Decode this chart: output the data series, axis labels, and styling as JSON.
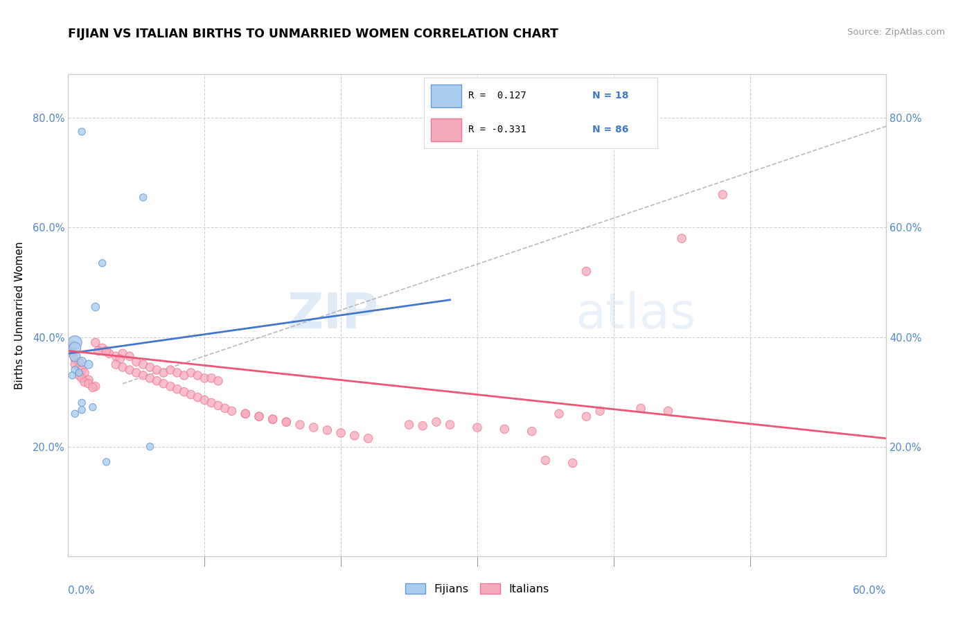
{
  "title": "FIJIAN VS ITALIAN BIRTHS TO UNMARRIED WOMEN CORRELATION CHART",
  "source": "Source: ZipAtlas.com",
  "ylabel": "Births to Unmarried Women",
  "xlim": [
    0.0,
    0.6
  ],
  "ylim": [
    0.0,
    0.88
  ],
  "yticks": [
    0.2,
    0.4,
    0.6,
    0.8
  ],
  "ytick_labels": [
    "20.0%",
    "40.0%",
    "60.0%",
    "80.0%"
  ],
  "fijian_color": "#aaccee",
  "italian_color": "#f5aabb",
  "fijian_edge_color": "#6699cc",
  "italian_edge_color": "#ee7799",
  "fijian_line_color": "#4477cc",
  "italian_line_color": "#ee5577",
  "gray_dash_color": "#aaaaaa",
  "watermark_color": "#ddeeff",
  "fijian_points": [
    [
      0.01,
      0.775
    ],
    [
      0.055,
      0.655
    ],
    [
      0.025,
      0.535
    ],
    [
      0.02,
      0.455
    ],
    [
      0.005,
      0.39
    ],
    [
      0.005,
      0.38
    ],
    [
      0.005,
      0.365
    ],
    [
      0.01,
      0.355
    ],
    [
      0.015,
      0.35
    ],
    [
      0.005,
      0.34
    ],
    [
      0.008,
      0.335
    ],
    [
      0.003,
      0.33
    ],
    [
      0.01,
      0.28
    ],
    [
      0.018,
      0.272
    ],
    [
      0.01,
      0.267
    ],
    [
      0.005,
      0.26
    ],
    [
      0.06,
      0.2
    ],
    [
      0.028,
      0.172
    ]
  ],
  "fijian_sizes": [
    55,
    55,
    55,
    70,
    200,
    150,
    120,
    90,
    75,
    60,
    55,
    55,
    55,
    55,
    55,
    55,
    55,
    55
  ],
  "italian_points": [
    [
      0.003,
      0.385
    ],
    [
      0.003,
      0.37
    ],
    [
      0.005,
      0.36
    ],
    [
      0.008,
      0.355
    ],
    [
      0.005,
      0.35
    ],
    [
      0.008,
      0.345
    ],
    [
      0.01,
      0.34
    ],
    [
      0.012,
      0.335
    ],
    [
      0.008,
      0.33
    ],
    [
      0.01,
      0.325
    ],
    [
      0.015,
      0.322
    ],
    [
      0.012,
      0.318
    ],
    [
      0.015,
      0.315
    ],
    [
      0.02,
      0.31
    ],
    [
      0.018,
      0.308
    ],
    [
      0.02,
      0.39
    ],
    [
      0.025,
      0.38
    ],
    [
      0.022,
      0.375
    ],
    [
      0.03,
      0.37
    ],
    [
      0.035,
      0.365
    ],
    [
      0.028,
      0.375
    ],
    [
      0.04,
      0.37
    ],
    [
      0.045,
      0.365
    ],
    [
      0.038,
      0.36
    ],
    [
      0.05,
      0.355
    ],
    [
      0.055,
      0.35
    ],
    [
      0.06,
      0.345
    ],
    [
      0.065,
      0.34
    ],
    [
      0.07,
      0.335
    ],
    [
      0.075,
      0.34
    ],
    [
      0.08,
      0.335
    ],
    [
      0.085,
      0.33
    ],
    [
      0.09,
      0.335
    ],
    [
      0.095,
      0.33
    ],
    [
      0.1,
      0.325
    ],
    [
      0.105,
      0.325
    ],
    [
      0.11,
      0.32
    ],
    [
      0.035,
      0.35
    ],
    [
      0.04,
      0.345
    ],
    [
      0.045,
      0.34
    ],
    [
      0.05,
      0.335
    ],
    [
      0.055,
      0.33
    ],
    [
      0.06,
      0.325
    ],
    [
      0.065,
      0.32
    ],
    [
      0.07,
      0.315
    ],
    [
      0.075,
      0.31
    ],
    [
      0.08,
      0.305
    ],
    [
      0.085,
      0.3
    ],
    [
      0.09,
      0.295
    ],
    [
      0.095,
      0.29
    ],
    [
      0.1,
      0.285
    ],
    [
      0.105,
      0.28
    ],
    [
      0.11,
      0.275
    ],
    [
      0.115,
      0.27
    ],
    [
      0.12,
      0.265
    ],
    [
      0.13,
      0.26
    ],
    [
      0.14,
      0.255
    ],
    [
      0.15,
      0.25
    ],
    [
      0.16,
      0.245
    ],
    [
      0.17,
      0.24
    ],
    [
      0.18,
      0.235
    ],
    [
      0.19,
      0.23
    ],
    [
      0.2,
      0.225
    ],
    [
      0.21,
      0.22
    ],
    [
      0.22,
      0.215
    ],
    [
      0.13,
      0.26
    ],
    [
      0.14,
      0.255
    ],
    [
      0.15,
      0.25
    ],
    [
      0.16,
      0.245
    ],
    [
      0.25,
      0.24
    ],
    [
      0.26,
      0.238
    ],
    [
      0.27,
      0.245
    ],
    [
      0.28,
      0.24
    ],
    [
      0.3,
      0.235
    ],
    [
      0.32,
      0.232
    ],
    [
      0.34,
      0.228
    ],
    [
      0.36,
      0.26
    ],
    [
      0.38,
      0.255
    ],
    [
      0.39,
      0.265
    ],
    [
      0.42,
      0.27
    ],
    [
      0.44,
      0.265
    ],
    [
      0.38,
      0.52
    ],
    [
      0.45,
      0.58
    ],
    [
      0.48,
      0.66
    ],
    [
      0.35,
      0.175
    ],
    [
      0.37,
      0.17
    ]
  ],
  "italian_sizes": [
    80,
    80,
    80,
    80,
    80,
    80,
    80,
    80,
    80,
    80,
    80,
    80,
    80,
    80,
    80,
    80,
    80,
    80,
    80,
    80,
    80,
    80,
    80,
    80,
    80,
    80,
    80,
    80,
    80,
    80,
    80,
    80,
    80,
    80,
    80,
    80,
    80,
    80,
    80,
    80,
    80,
    80,
    80,
    80,
    80,
    80,
    80,
    80,
    80,
    80,
    80,
    80,
    80,
    80,
    80,
    80,
    80,
    80,
    80,
    80,
    80,
    80,
    80,
    80,
    80,
    80,
    80,
    80,
    80,
    80,
    80,
    80,
    80,
    80,
    80,
    80,
    80,
    80,
    80,
    80,
    80,
    80,
    80,
    80,
    80,
    80
  ]
}
